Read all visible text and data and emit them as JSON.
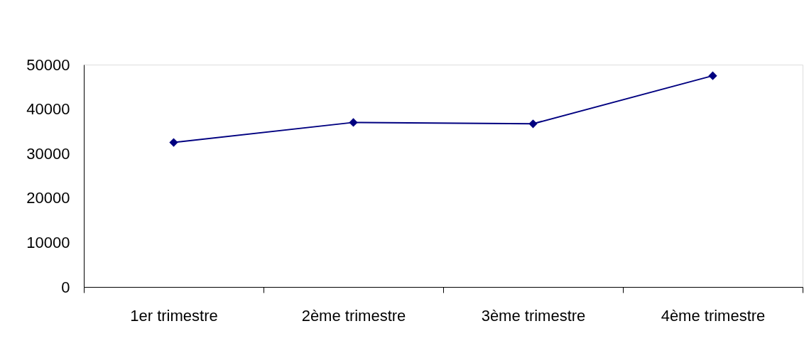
{
  "chart_data": {
    "type": "line",
    "categories": [
      "1er trimestre",
      "2ème trimestre",
      "3ème trimestre",
      "4ème trimestre"
    ],
    "series": [
      {
        "color": "#000080",
        "values": [
          32500,
          37000,
          36700,
          47500
        ]
      }
    ],
    "ylim": [
      0,
      50000
    ],
    "yticks": [
      0,
      10000,
      20000,
      30000,
      40000,
      50000
    ],
    "grid": false,
    "marker": "diamond",
    "line_style": "solid"
  }
}
